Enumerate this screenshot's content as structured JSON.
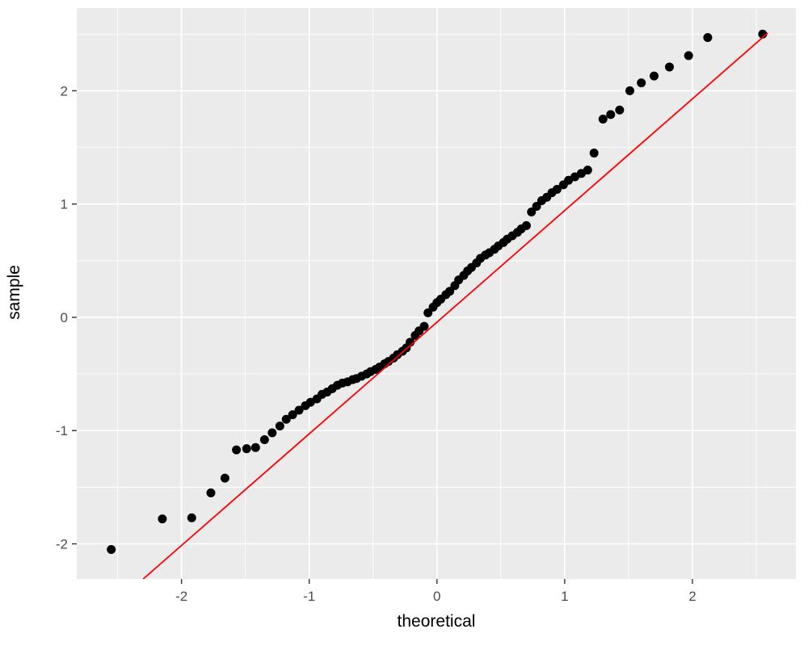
{
  "chart_data": {
    "type": "scatter",
    "title": "",
    "xlabel": "theoretical",
    "ylabel": "sample",
    "xlim": [
      -2.82,
      2.81
    ],
    "ylim": [
      -2.31,
      2.73
    ],
    "x_ticks": [
      -2,
      -1,
      0,
      1,
      2
    ],
    "y_ticks": [
      -2,
      -1,
      0,
      1,
      2
    ],
    "x_minor": [
      -2.5,
      -1.5,
      -0.5,
      0.5,
      1.5,
      2.5
    ],
    "y_minor": [
      -2.5,
      -1.5,
      -0.5,
      0.5,
      1.5,
      2.5
    ],
    "grid": true,
    "legend": "none",
    "points": [
      [
        -2.55,
        -2.05
      ],
      [
        -2.15,
        -1.78
      ],
      [
        -1.92,
        -1.77
      ],
      [
        -1.77,
        -1.55
      ],
      [
        -1.66,
        -1.42
      ],
      [
        -1.57,
        -1.17
      ],
      [
        -1.49,
        -1.16
      ],
      [
        -1.42,
        -1.15
      ],
      [
        -1.35,
        -1.08
      ],
      [
        -1.29,
        -1.02
      ],
      [
        -1.23,
        -0.96
      ],
      [
        -1.18,
        -0.9
      ],
      [
        -1.13,
        -0.86
      ],
      [
        -1.08,
        -0.82
      ],
      [
        -1.03,
        -0.78
      ],
      [
        -0.99,
        -0.75
      ],
      [
        -0.94,
        -0.72
      ],
      [
        -0.9,
        -0.68
      ],
      [
        -0.86,
        -0.66
      ],
      [
        -0.82,
        -0.63
      ],
      [
        -0.78,
        -0.6
      ],
      [
        -0.74,
        -0.58
      ],
      [
        -0.7,
        -0.57
      ],
      [
        -0.66,
        -0.55
      ],
      [
        -0.63,
        -0.54
      ],
      [
        -0.59,
        -0.52
      ],
      [
        -0.55,
        -0.5
      ],
      [
        -0.52,
        -0.48
      ],
      [
        -0.48,
        -0.46
      ],
      [
        -0.45,
        -0.44
      ],
      [
        -0.41,
        -0.41
      ],
      [
        -0.38,
        -0.39
      ],
      [
        -0.34,
        -0.36
      ],
      [
        -0.31,
        -0.33
      ],
      [
        -0.27,
        -0.3
      ],
      [
        -0.24,
        -0.27
      ],
      [
        -0.21,
        -0.22
      ],
      [
        -0.17,
        -0.16
      ],
      [
        -0.14,
        -0.12
      ],
      [
        -0.1,
        -0.08
      ],
      [
        -0.07,
        0.04
      ],
      [
        -0.03,
        0.09
      ],
      [
        0.0,
        0.13
      ],
      [
        0.03,
        0.16
      ],
      [
        0.07,
        0.2
      ],
      [
        0.1,
        0.23
      ],
      [
        0.14,
        0.28
      ],
      [
        0.17,
        0.33
      ],
      [
        0.21,
        0.37
      ],
      [
        0.24,
        0.41
      ],
      [
        0.27,
        0.44
      ],
      [
        0.31,
        0.48
      ],
      [
        0.34,
        0.52
      ],
      [
        0.38,
        0.55
      ],
      [
        0.41,
        0.57
      ],
      [
        0.45,
        0.6
      ],
      [
        0.48,
        0.63
      ],
      [
        0.52,
        0.66
      ],
      [
        0.55,
        0.69
      ],
      [
        0.59,
        0.72
      ],
      [
        0.63,
        0.75
      ],
      [
        0.66,
        0.78
      ],
      [
        0.7,
        0.81
      ],
      [
        0.74,
        0.93
      ],
      [
        0.78,
        0.98
      ],
      [
        0.82,
        1.03
      ],
      [
        0.86,
        1.06
      ],
      [
        0.9,
        1.1
      ],
      [
        0.94,
        1.13
      ],
      [
        0.99,
        1.17
      ],
      [
        1.03,
        1.21
      ],
      [
        1.08,
        1.24
      ],
      [
        1.13,
        1.27
      ],
      [
        1.18,
        1.3
      ],
      [
        1.23,
        1.45
      ],
      [
        1.3,
        1.75
      ],
      [
        1.36,
        1.79
      ],
      [
        1.43,
        1.83
      ],
      [
        1.51,
        2.0
      ],
      [
        1.6,
        2.07
      ],
      [
        1.7,
        2.13
      ],
      [
        1.82,
        2.21
      ],
      [
        1.97,
        2.31
      ],
      [
        2.12,
        2.47
      ],
      [
        2.55,
        2.5
      ]
    ],
    "ref_line": {
      "x1": -2.3,
      "y1": -2.31,
      "x2": 2.59,
      "y2": 2.51
    },
    "point_radius": 5.5,
    "colors": {
      "panel_bg": "#EBEBEB",
      "grid": "#FFFFFF",
      "point": "#000000",
      "ref_line": "#FF0000",
      "tick_label": "#4D4D4D",
      "tick_mark": "#333333",
      "background": "#FFFFFF"
    }
  }
}
